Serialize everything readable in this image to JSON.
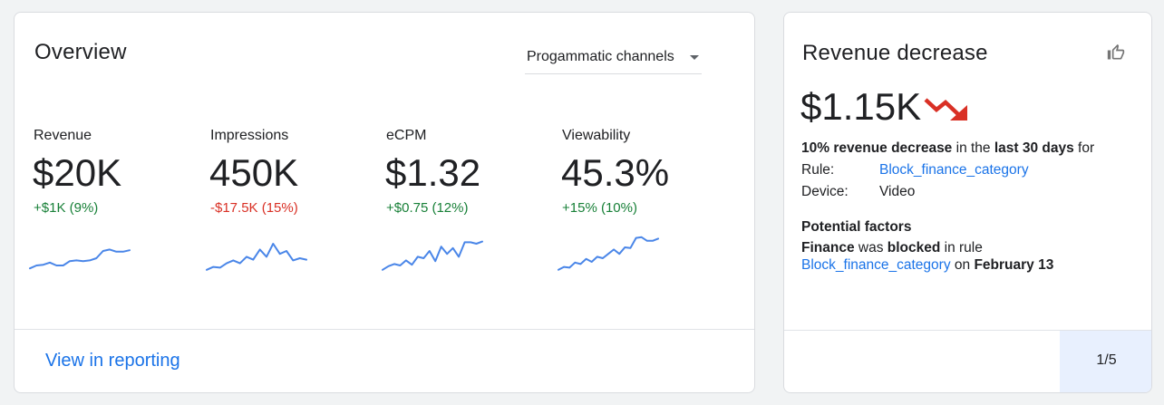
{
  "overview": {
    "title": "Overview",
    "channel_select": "Progammatic channels",
    "metrics": [
      {
        "label": "Revenue",
        "value": "$20K",
        "delta": "+$1K (9%)",
        "direction": "positive",
        "trend": [
          3,
          5,
          5.5,
          7,
          5,
          5,
          8,
          8.5,
          8,
          8.5,
          10,
          15,
          16,
          14.5,
          14.5,
          15.5
        ]
      },
      {
        "label": "Impressions",
        "value": "450K",
        "delta": "-$17.5K (15%)",
        "direction": "negative",
        "trend": [
          2,
          4,
          3.5,
          6.5,
          8.5,
          6.5,
          11,
          9,
          16,
          11,
          20,
          13,
          15,
          8.5,
          10,
          9
        ]
      },
      {
        "label": "eCPM",
        "value": "$1.32",
        "delta": "+$0.75 (12%)",
        "direction": "positive",
        "trend": [
          2,
          4.5,
          6,
          5,
          8.5,
          5.5,
          11,
          10,
          15,
          8,
          18,
          13,
          17,
          11,
          21,
          21,
          20,
          21.5
        ]
      },
      {
        "label": "Viewability",
        "value": "45.3%",
        "delta": "+15% (10%)",
        "direction": "positive",
        "trend": [
          2,
          4,
          3.5,
          7,
          6,
          9.5,
          7.5,
          11,
          10,
          13,
          16,
          13,
          17.5,
          17,
          24,
          24.5,
          22,
          22,
          23.5
        ]
      }
    ],
    "link": "View in reporting"
  },
  "insight": {
    "title": "Revenue decrease",
    "value": "$1.15K",
    "summary_bold1": "10% revenue decrease",
    "summary_mid": " in the ",
    "summary_bold2": "last 30 days",
    "summary_end": " for",
    "rule_label": "Rule:",
    "rule_value": "Block_finance_category",
    "device_label": "Device:",
    "device_value": "Video",
    "factors_title": "Potential factors",
    "factor_bold1": "Finance",
    "factor_mid": " was ",
    "factor_bold2": "blocked",
    "factor_end": " in rule",
    "factor_link": "Block_finance_category",
    "factor_on": " on ",
    "factor_date": "February 13",
    "pager": "1/5"
  },
  "colors": {
    "positive": "#188038",
    "negative": "#d93025",
    "link": "#1a73e8",
    "sparkline": "#4a86e8",
    "trend_down": "#d93025"
  },
  "icons": {
    "thumb": "thumb-up-outline-icon",
    "trend": "trending-down-icon",
    "caret": "caret-down-icon"
  }
}
